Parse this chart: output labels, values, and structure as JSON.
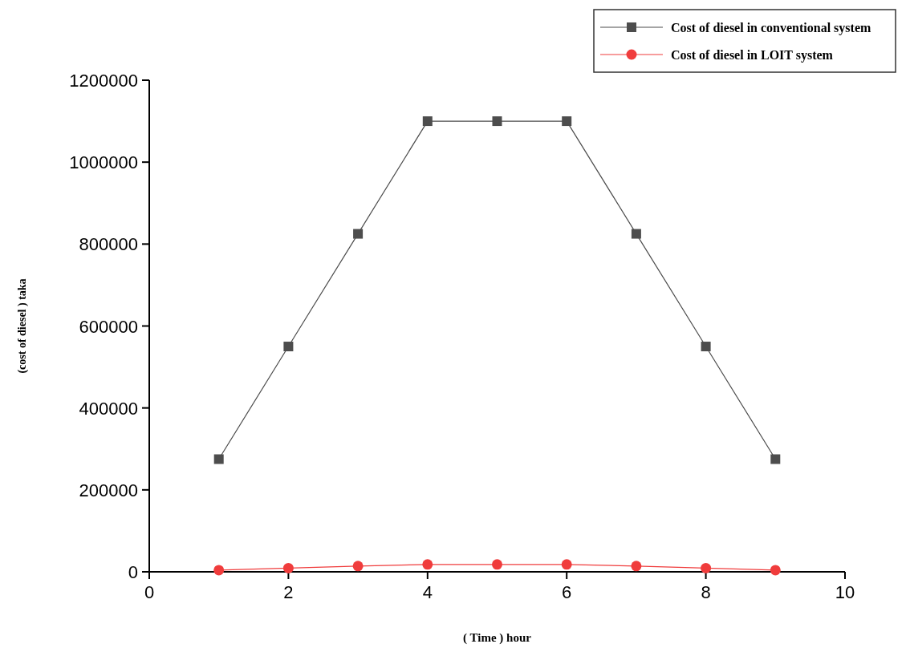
{
  "chart_data": {
    "type": "line",
    "xlabel": "( Time ) hour",
    "ylabel": "(cost of diesel ) taka",
    "x": [
      1,
      2,
      3,
      4,
      5,
      6,
      7,
      8,
      9
    ],
    "series": [
      {
        "name": "Cost of diesel in conventional system",
        "color": "#4d4d4d",
        "marker": "square",
        "values": [
          275000,
          550000,
          825000,
          1100000,
          1100000,
          1100000,
          825000,
          550000,
          275000
        ]
      },
      {
        "name": "Cost of diesel in LOIT system",
        "color": "#f03c3c",
        "marker": "circle",
        "values": [
          4000,
          9000,
          14000,
          18000,
          18000,
          18000,
          14000,
          9000,
          4000
        ]
      }
    ],
    "xlim": [
      0,
      10
    ],
    "xticks": [
      0,
      2,
      4,
      6,
      8,
      10
    ],
    "ylim": [
      0,
      1200000
    ],
    "yticks": [
      0,
      200000,
      400000,
      600000,
      800000,
      1000000,
      1200000
    ],
    "grid": false,
    "legend": "top right",
    "line_style": "solid"
  }
}
